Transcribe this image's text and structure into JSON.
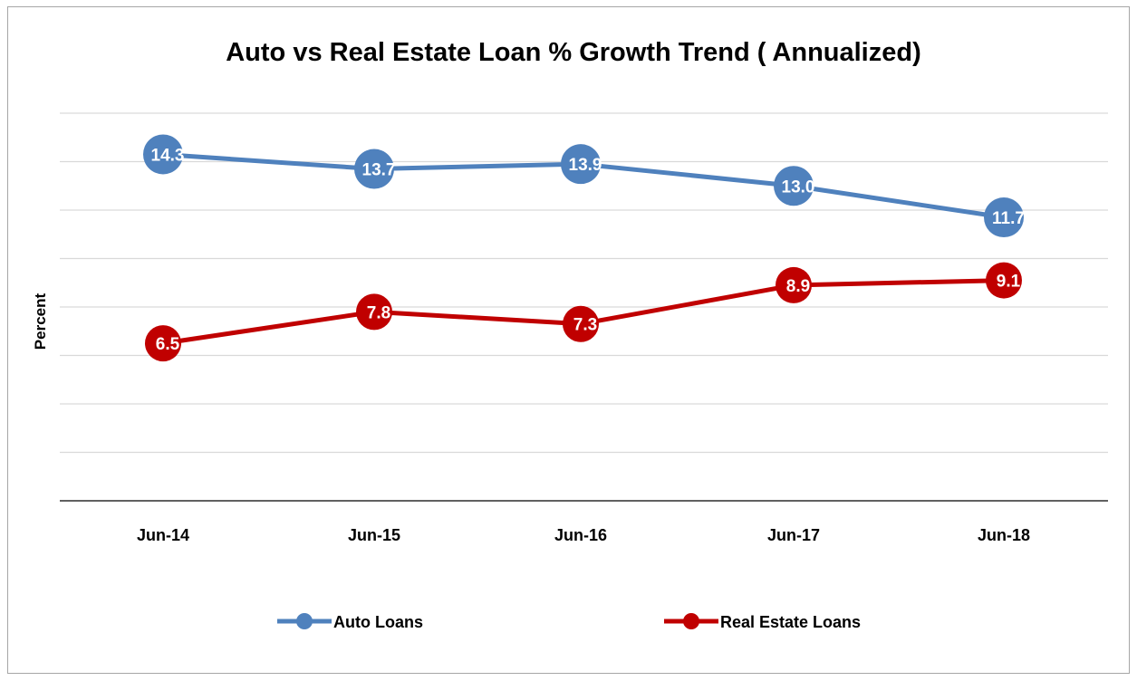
{
  "chart_data": {
    "type": "line",
    "title": "Auto vs Real Estate Loan % Growth Trend ( Annualized)",
    "xlabel": "",
    "ylabel": "Percent",
    "categories": [
      "Jun-14",
      "Jun-15",
      "Jun-16",
      "Jun-17",
      "Jun-18"
    ],
    "ylim": [
      0,
      16
    ],
    "grid": true,
    "legend_position": "bottom",
    "series": [
      {
        "name": "Auto Loans",
        "color": "#4f81bd",
        "values": [
          14.3,
          13.7,
          13.9,
          13.0,
          11.7
        ],
        "labels": [
          "14.3",
          "13.7",
          "13.9",
          "13.0",
          "11.7"
        ]
      },
      {
        "name": "Real Estate Loans",
        "color": "#c00000",
        "values": [
          6.5,
          7.8,
          7.3,
          8.9,
          9.1
        ],
        "labels": [
          "6.5",
          "7.8",
          "7.3",
          "8.9",
          "9.1"
        ]
      }
    ]
  }
}
